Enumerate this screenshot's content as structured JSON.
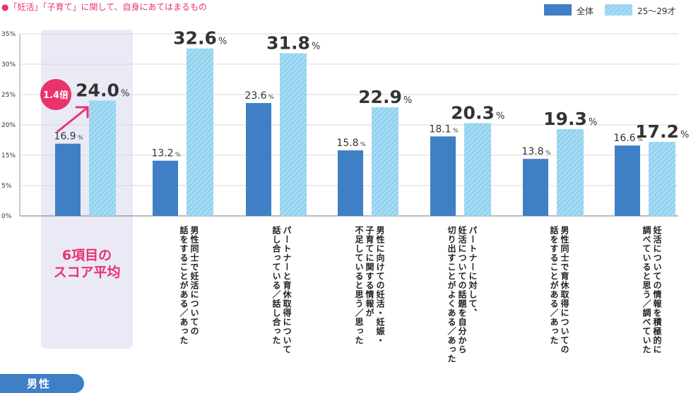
{
  "header": {
    "title": "●「妊活」「子育て」に関して、自身にあてはまるもの"
  },
  "legend": {
    "all_label": "全体",
    "young_label": "25〜29才"
  },
  "gender": "男性",
  "score_label": "6項目のスコア平均",
  "ratio_badge": "1.4倍",
  "colors": {
    "all": "#3f7fc6",
    "young": "#9dd8f2",
    "accent": "#e8336c"
  },
  "chart_data": {
    "type": "bar",
    "title": "",
    "xlabel": "",
    "ylabel": "",
    "ylim": [
      0,
      35
    ],
    "yticks": [
      "0%",
      "5%",
      "15%",
      "20%",
      "25%",
      "30%",
      "35%"
    ],
    "grid": true,
    "legend_position": "top-right",
    "categories": [
      "6項目のスコア平均",
      "男性同士で妊活についての話をすることがある／あった",
      "パートナーと育休取得について話し合っている／話し合った",
      "男性に向けての妊活・妊娠・子育てに関する情報が不足していると思う／思った",
      "パートナーに対して、妊活についての話題を自分から切り出すことがよくある／あった",
      "男性同士で育休取得についての話をすることがある／あった",
      "妊活についての情報を積極的に調べていると思う／調べていた"
    ],
    "category_lines": [
      [],
      [
        "男性同士で妊活についての",
        "話をすることがある／あった"
      ],
      [
        "パートナーと育休取得について",
        "話し合っている／話し合った"
      ],
      [
        "男性に向けての妊活・妊娠・",
        "子育てに関する情報が",
        "不足していると思う／思った"
      ],
      [
        "パートナーに対して、",
        "妊活についての話題を自分から",
        "切り出すことがよくある／あった"
      ],
      [
        "男性同士で育休取得についての",
        "話をすることがある／あった"
      ],
      [
        "妊活についての情報を積極的に",
        "調べていると思う／調べていた"
      ]
    ],
    "series": [
      {
        "name": "全体",
        "values": [
          16.9,
          13.2,
          23.6,
          15.8,
          18.1,
          13.8,
          16.6
        ]
      },
      {
        "name": "25〜29才",
        "values": [
          24.0,
          32.6,
          31.8,
          22.9,
          20.3,
          19.3,
          17.2
        ]
      }
    ],
    "value_labels": {
      "all": [
        "16.9",
        "13.2",
        "23.6",
        "15.8",
        "18.1",
        "13.8",
        "16.6"
      ],
      "young": [
        "24.0",
        "32.6",
        "31.8",
        "22.9",
        "20.3",
        "19.3",
        "17.2"
      ],
      "unit": "%"
    }
  }
}
